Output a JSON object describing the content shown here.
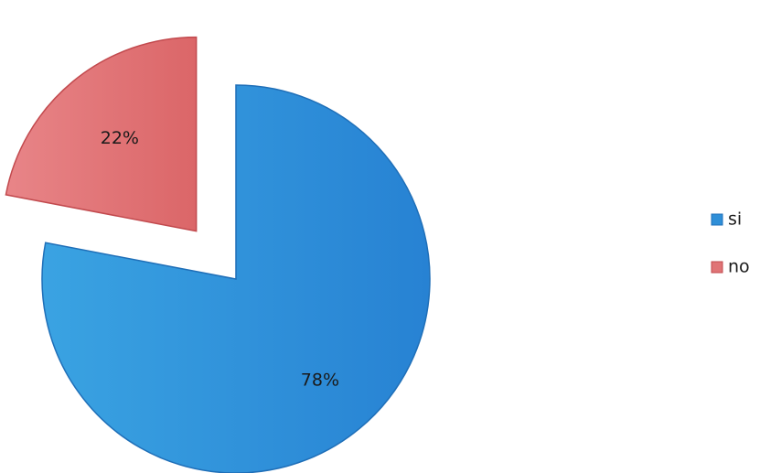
{
  "chart_data": {
    "type": "pie",
    "style": "exploded",
    "legend_position": "right",
    "slices": [
      {
        "label": "si",
        "value": 78,
        "display": "78%",
        "color": "#2f8fd8",
        "edge_color": "#1f6fb8"
      },
      {
        "label": "no",
        "value": 22,
        "display": "22%",
        "color": "#e07476",
        "edge_color": "#c24a4e"
      }
    ]
  }
}
